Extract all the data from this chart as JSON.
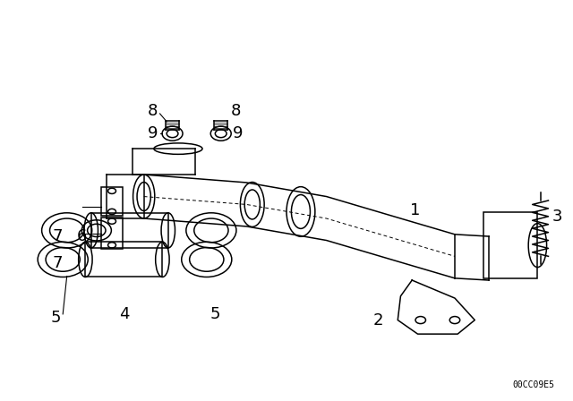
{
  "bg_color": "#ffffff",
  "line_color": "#000000",
  "fig_width": 6.4,
  "fig_height": 4.48,
  "dpi": 100,
  "watermark": "00CC09E5",
  "label_fontsize": 13
}
